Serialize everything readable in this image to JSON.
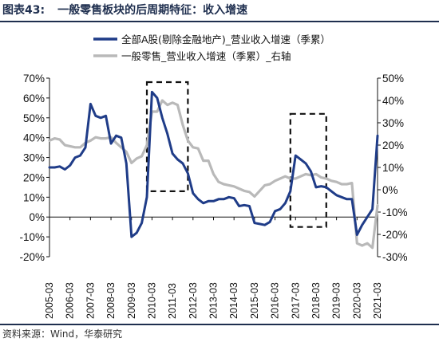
{
  "header": {
    "figure_label": "图表43:",
    "figure_title": "一般零售板块的后周期特征：收入增速"
  },
  "footer": {
    "source": "资料来源：Wind，华泰研究"
  },
  "colors": {
    "series_a": "#1f3c88",
    "series_b": "#b9b9b9",
    "box": "#111111",
    "rule": "#1f2f4f"
  },
  "chart_data": {
    "type": "line",
    "legend_position": "top",
    "grid": false,
    "x_ticks": [
      "2005-03",
      "2006-03",
      "2007-03",
      "2008-03",
      "2009-03",
      "2010-03",
      "2011-03",
      "2012-03",
      "2013-03",
      "2014-03",
      "2015-03",
      "2016-03",
      "2017-03",
      "2018-03",
      "2019-03",
      "2020-03",
      "2021-03"
    ],
    "y_left": {
      "min": -20,
      "max": 70,
      "step": 10,
      "unit": "%"
    },
    "y_right": {
      "min": -30,
      "max": 50,
      "step": 10,
      "unit": "%"
    },
    "series": [
      {
        "name": "全部A股(剔除金融地产)_营业收入增速（季累）",
        "axis": "left",
        "color": "#1f3c88",
        "points": [
          [
            "2005-03",
            25
          ],
          [
            "2005-06",
            25
          ],
          [
            "2005-09",
            25.5
          ],
          [
            "2005-12",
            24
          ],
          [
            "2006-03",
            26
          ],
          [
            "2006-06",
            30
          ],
          [
            "2006-09",
            31
          ],
          [
            "2006-12",
            35
          ],
          [
            "2007-03",
            57
          ],
          [
            "2007-06",
            51
          ],
          [
            "2007-09",
            50
          ],
          [
            "2007-12",
            51
          ],
          [
            "2008-03",
            37
          ],
          [
            "2008-06",
            41
          ],
          [
            "2008-09",
            40
          ],
          [
            "2008-12",
            27
          ],
          [
            "2009-03",
            -10
          ],
          [
            "2009-06",
            -8
          ],
          [
            "2009-09",
            -3
          ],
          [
            "2009-12",
            10
          ],
          [
            "2010-03",
            63
          ],
          [
            "2010-06",
            60
          ],
          [
            "2010-09",
            50
          ],
          [
            "2010-12",
            42
          ],
          [
            "2011-03",
            32
          ],
          [
            "2011-06",
            29
          ],
          [
            "2011-09",
            27
          ],
          [
            "2011-12",
            22
          ],
          [
            "2012-03",
            12
          ],
          [
            "2012-06",
            9
          ],
          [
            "2012-09",
            7
          ],
          [
            "2012-12",
            8
          ],
          [
            "2013-03",
            8
          ],
          [
            "2013-06",
            9
          ],
          [
            "2013-09",
            9
          ],
          [
            "2013-12",
            10
          ],
          [
            "2014-03",
            9.5
          ],
          [
            "2014-06",
            5.5
          ],
          [
            "2014-09",
            6
          ],
          [
            "2014-12",
            5.5
          ],
          [
            "2015-03",
            -3
          ],
          [
            "2015-06",
            -3.5
          ],
          [
            "2015-09",
            -4
          ],
          [
            "2015-12",
            -2.5
          ],
          [
            "2016-03",
            3
          ],
          [
            "2016-06",
            4
          ],
          [
            "2016-09",
            7
          ],
          [
            "2016-12",
            13
          ],
          [
            "2017-03",
            31
          ],
          [
            "2017-06",
            29
          ],
          [
            "2017-09",
            27
          ],
          [
            "2017-12",
            23
          ],
          [
            "2018-03",
            15
          ],
          [
            "2018-06",
            15.5
          ],
          [
            "2018-09",
            15
          ],
          [
            "2018-12",
            13
          ],
          [
            "2019-03",
            11
          ],
          [
            "2019-06",
            10
          ],
          [
            "2019-09",
            9
          ],
          [
            "2019-12",
            9
          ],
          [
            "2020-03",
            -9
          ],
          [
            "2020-06",
            -4
          ],
          [
            "2020-09",
            0
          ],
          [
            "2020-12",
            4
          ],
          [
            "2021-03",
            41
          ]
        ]
      },
      {
        "name": "一般零售_营业收入增速（季累）_右轴",
        "axis": "right",
        "color": "#b9b9b9",
        "points": [
          [
            "2005-03",
            22
          ],
          [
            "2005-06",
            23
          ],
          [
            "2005-09",
            22.5
          ],
          [
            "2005-12",
            20
          ],
          [
            "2006-03",
            19.5
          ],
          [
            "2006-06",
            19
          ],
          [
            "2006-09",
            19
          ],
          [
            "2006-12",
            21
          ],
          [
            "2007-03",
            22
          ],
          [
            "2007-06",
            23.5
          ],
          [
            "2007-09",
            23
          ],
          [
            "2007-12",
            23
          ],
          [
            "2008-03",
            23.5
          ],
          [
            "2008-06",
            21
          ],
          [
            "2008-09",
            19
          ],
          [
            "2008-12",
            17
          ],
          [
            "2009-03",
            12
          ],
          [
            "2009-06",
            14
          ],
          [
            "2009-09",
            15
          ],
          [
            "2009-12",
            20
          ],
          [
            "2010-03",
            35
          ],
          [
            "2010-06",
            35
          ],
          [
            "2010-09",
            40
          ],
          [
            "2010-12",
            38
          ],
          [
            "2011-03",
            39
          ],
          [
            "2011-06",
            38
          ],
          [
            "2011-09",
            29
          ],
          [
            "2011-12",
            22
          ],
          [
            "2012-03",
            19
          ],
          [
            "2012-06",
            18.5
          ],
          [
            "2012-09",
            13
          ],
          [
            "2012-12",
            13
          ],
          [
            "2013-03",
            7
          ],
          [
            "2013-06",
            3.5
          ],
          [
            "2013-09",
            2.5
          ],
          [
            "2013-12",
            2
          ],
          [
            "2014-03",
            1.5
          ],
          [
            "2014-06",
            0.5
          ],
          [
            "2014-09",
            -0.5
          ],
          [
            "2014-12",
            -1
          ],
          [
            "2015-03",
            -3
          ],
          [
            "2015-06",
            -0.5
          ],
          [
            "2015-09",
            2
          ],
          [
            "2015-12",
            2.5
          ],
          [
            "2016-03",
            4
          ],
          [
            "2016-06",
            5
          ],
          [
            "2016-09",
            6
          ],
          [
            "2016-12",
            5
          ],
          [
            "2017-03",
            5
          ],
          [
            "2017-06",
            6
          ],
          [
            "2017-09",
            7
          ],
          [
            "2017-12",
            6.5
          ],
          [
            "2018-03",
            7
          ],
          [
            "2018-06",
            5.5
          ],
          [
            "2018-09",
            5
          ],
          [
            "2018-12",
            4
          ],
          [
            "2019-03",
            3.5
          ],
          [
            "2019-06",
            2.5
          ],
          [
            "2019-09",
            2.5
          ],
          [
            "2019-12",
            3
          ],
          [
            "2020-03",
            -24
          ],
          [
            "2020-06",
            -25
          ],
          [
            "2020-09",
            -24
          ],
          [
            "2020-12",
            -26
          ],
          [
            "2021-03",
            -7
          ]
        ]
      }
    ],
    "annotations": [
      {
        "shape": "dashed-box",
        "from": "2009-12",
        "to": "2011-12",
        "y_left_top": 68,
        "y_left_bottom": 13
      },
      {
        "shape": "dashed-box",
        "from": "2016-12",
        "to": "2018-09",
        "y_left_top": 52,
        "y_left_bottom": -5
      }
    ]
  }
}
